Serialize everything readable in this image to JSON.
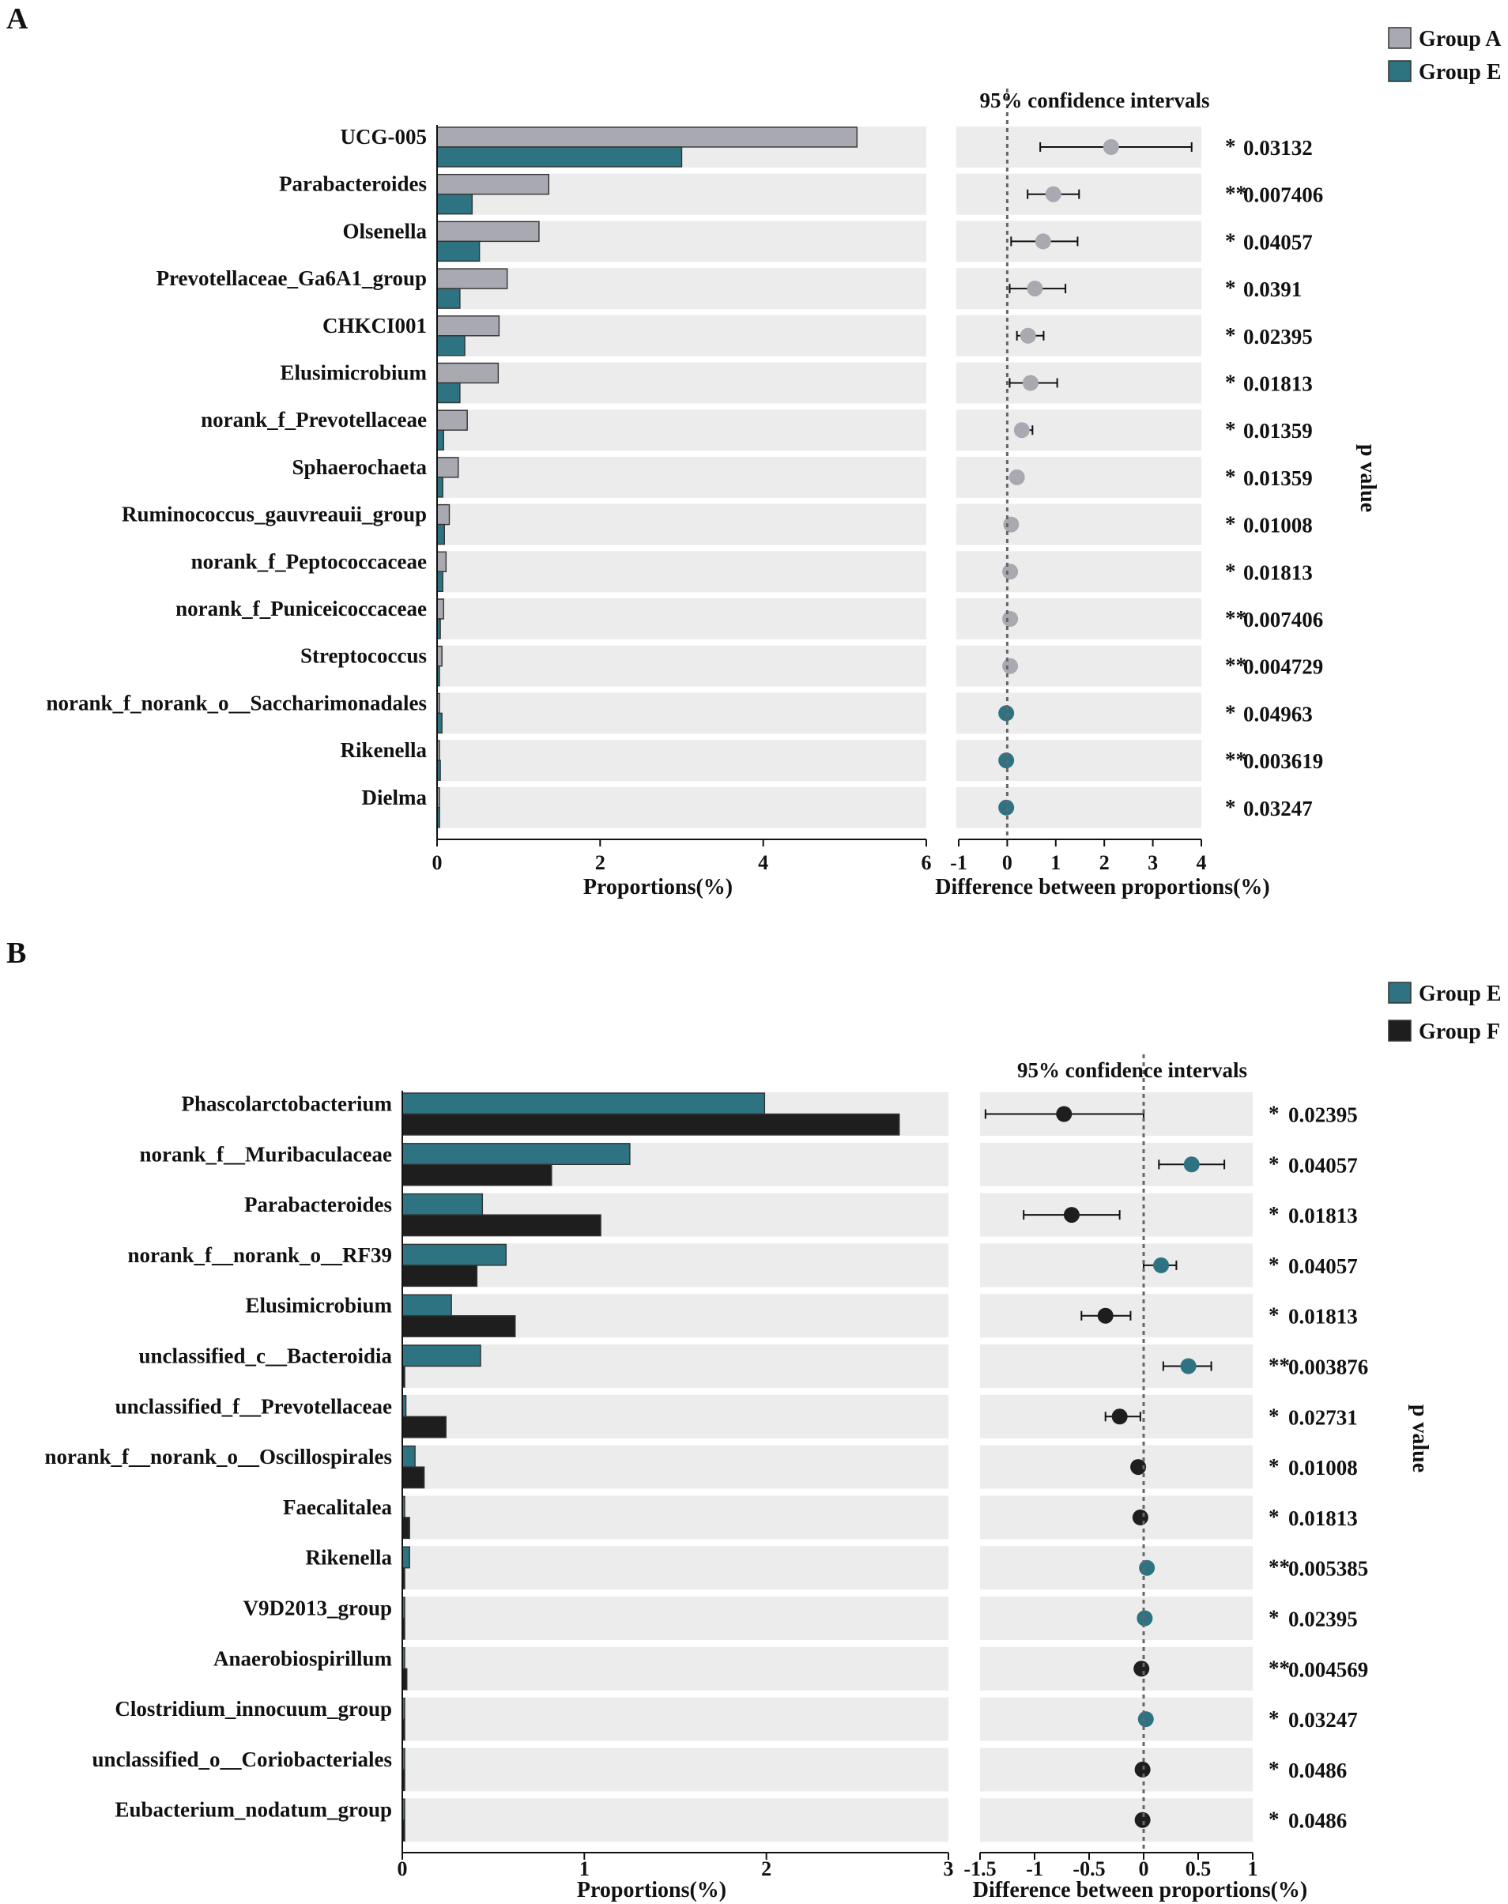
{
  "chart_data": [
    {
      "panel": "A",
      "type": "bar",
      "categories": [
        "UCG-005",
        "Parabacteroides",
        "Olsenella",
        "Prevotellaceae_Ga6A1_group",
        "CHKCI001",
        "Elusimicrobium",
        "norank_f_Prevotellaceae",
        "Sphaerochaeta",
        "Ruminococcus_gauvreauii_group",
        "norank_f_Peptococcaceae",
        "norank_f_Puniceicoccaceae",
        "Streptococcus",
        "norank_f_norank_o__Saccharimonadales",
        "Rikenella",
        "Dielma"
      ],
      "series": [
        {
          "name": "Group A",
          "color": "#a8a9b1",
          "values": [
            5.15,
            1.37,
            1.25,
            0.86,
            0.76,
            0.75,
            0.37,
            0.26,
            0.15,
            0.11,
            0.08,
            0.06,
            0.02,
            0.01,
            0.01
          ]
        },
        {
          "name": "Group E",
          "color": "#2e7382",
          "values": [
            3.0,
            0.43,
            0.52,
            0.28,
            0.34,
            0.28,
            0.08,
            0.07,
            0.09,
            0.07,
            0.04,
            0.02,
            0.06,
            0.04,
            0.03
          ]
        }
      ],
      "xlabel": "Proportions(%)",
      "xlim": [
        0,
        6
      ],
      "xticks": [
        0,
        2,
        4,
        6
      ],
      "ci": {
        "title": "95% confidence intervals",
        "xlabel": "Difference between proportions(%)",
        "xlim": [
          -1,
          4
        ],
        "xticks": [
          -1,
          0,
          1,
          2,
          3,
          4
        ],
        "diff": [
          2.14,
          0.95,
          0.74,
          0.57,
          0.43,
          0.48,
          0.3,
          0.2,
          0.08,
          0.06,
          0.06,
          0.06,
          -0.02,
          -0.02,
          -0.02
        ],
        "lower": [
          0.68,
          0.42,
          0.08,
          0.05,
          0.2,
          0.05,
          0.2,
          0.18,
          0.06,
          0.05,
          0.05,
          0.05,
          -0.04,
          -0.04,
          -0.04
        ],
        "upper": [
          3.8,
          1.48,
          1.45,
          1.2,
          0.75,
          1.03,
          0.52,
          0.22,
          0.1,
          0.07,
          0.07,
          0.07,
          0.0,
          0.0,
          0.0
        ],
        "point_colors": [
          "#a8a9b1",
          "#a8a9b1",
          "#a8a9b1",
          "#a8a9b1",
          "#a8a9b1",
          "#a8a9b1",
          "#a8a9b1",
          "#a8a9b1",
          "#a8a9b1",
          "#a8a9b1",
          "#a8a9b1",
          "#a8a9b1",
          "#2e7382",
          "#2e7382",
          "#2e7382"
        ]
      },
      "pvalue_label": "p value",
      "significance": [
        "*",
        "**",
        "*",
        "*",
        "*",
        "*",
        "*",
        "*",
        "*",
        "*",
        "**",
        "**",
        "*",
        "**",
        "*"
      ],
      "pvalues": [
        "0.03132",
        "0.007406",
        "0.04057",
        "0.0391",
        "0.02395",
        "0.01813",
        "0.01359",
        "0.01359",
        "0.01008",
        "0.01813",
        "0.007406",
        "0.004729",
        "0.04963",
        "0.003619",
        "0.03247"
      ],
      "legend": {
        "placement": "top-right",
        "entries": [
          "Group A",
          "Group E"
        ]
      }
    },
    {
      "panel": "B",
      "type": "bar",
      "categories": [
        "Phascolarctobacterium",
        "norank_f__Muribaculaceae",
        "Parabacteroides",
        "norank_f__norank_o__RF39",
        "Elusimicrobium",
        "unclassified_c__Bacteroidia",
        "unclassified_f__Prevotellaceae",
        "norank_f__norank_o__Oscillospirales",
        "Faecalitalea",
        "Rikenella",
        "V9D2013_group",
        "Anaerobiospirillum",
        "Clostridium_innocuum_group",
        "unclassified_o__Coriobacteriales",
        "Eubacterium_nodatum_group"
      ],
      "series": [
        {
          "name": "Group E",
          "color": "#2e7382",
          "values": [
            1.99,
            1.25,
            0.44,
            0.57,
            0.27,
            0.43,
            0.02,
            0.07,
            0.01,
            0.04,
            0.01,
            0.003,
            0.01,
            0.003,
            0.005
          ]
        },
        {
          "name": "Group F",
          "color": "#1e1e1e",
          "values": [
            2.73,
            0.82,
            1.09,
            0.41,
            0.62,
            0.01,
            0.24,
            0.12,
            0.04,
            0.003,
            0.01,
            0.025,
            0.005,
            0.01,
            0.01
          ]
        }
      ],
      "xlabel": "Proportions(%)",
      "xlim": [
        0,
        3
      ],
      "xticks": [
        0,
        1,
        2,
        3
      ],
      "ci": {
        "title": "95% confidence intervals",
        "xlabel": "Difference between proportions(%)",
        "xlim": [
          -1.5,
          1
        ],
        "xticks": [
          -1.5,
          -1,
          -0.5,
          0,
          0.5,
          1
        ],
        "xtick_labels": [
          "-1.5",
          "-1",
          "-0.5",
          "0",
          "0.5",
          "1"
        ],
        "diff": [
          -0.73,
          0.44,
          -0.66,
          0.16,
          -0.35,
          0.41,
          -0.22,
          -0.05,
          -0.03,
          0.03,
          0.01,
          -0.02,
          0.02,
          -0.01,
          -0.01
        ],
        "lower": [
          -1.45,
          0.14,
          -1.1,
          0.0,
          -0.57,
          0.18,
          -0.35,
          -0.06,
          -0.04,
          0.02,
          0.0,
          -0.03,
          0.01,
          -0.02,
          -0.02
        ],
        "upper": [
          0.0,
          0.74,
          -0.22,
          0.3,
          -0.12,
          0.62,
          -0.03,
          -0.04,
          -0.02,
          0.04,
          0.02,
          -0.01,
          0.03,
          0.0,
          0.0
        ],
        "point_colors": [
          "#1e1e1e",
          "#2e7382",
          "#1e1e1e",
          "#2e7382",
          "#1e1e1e",
          "#2e7382",
          "#1e1e1e",
          "#1e1e1e",
          "#1e1e1e",
          "#2e7382",
          "#2e7382",
          "#1e1e1e",
          "#2e7382",
          "#1e1e1e",
          "#1e1e1e"
        ]
      },
      "pvalue_label": "p value",
      "significance": [
        "*",
        "*",
        "*",
        "*",
        "*",
        "**",
        "*",
        "*",
        "*",
        "**",
        "*",
        "**",
        "*",
        "*",
        "*"
      ],
      "pvalues": [
        "0.02395",
        "0.04057",
        "0.01813",
        "0.04057",
        "0.01813",
        "0.003876",
        "0.02731",
        "0.01008",
        "0.01813",
        "0.005385",
        "0.02395",
        "0.004569",
        "0.03247",
        "0.0486",
        "0.0486"
      ],
      "legend": {
        "placement": "top-right",
        "entries": [
          "Group E",
          "Group F"
        ]
      }
    }
  ]
}
